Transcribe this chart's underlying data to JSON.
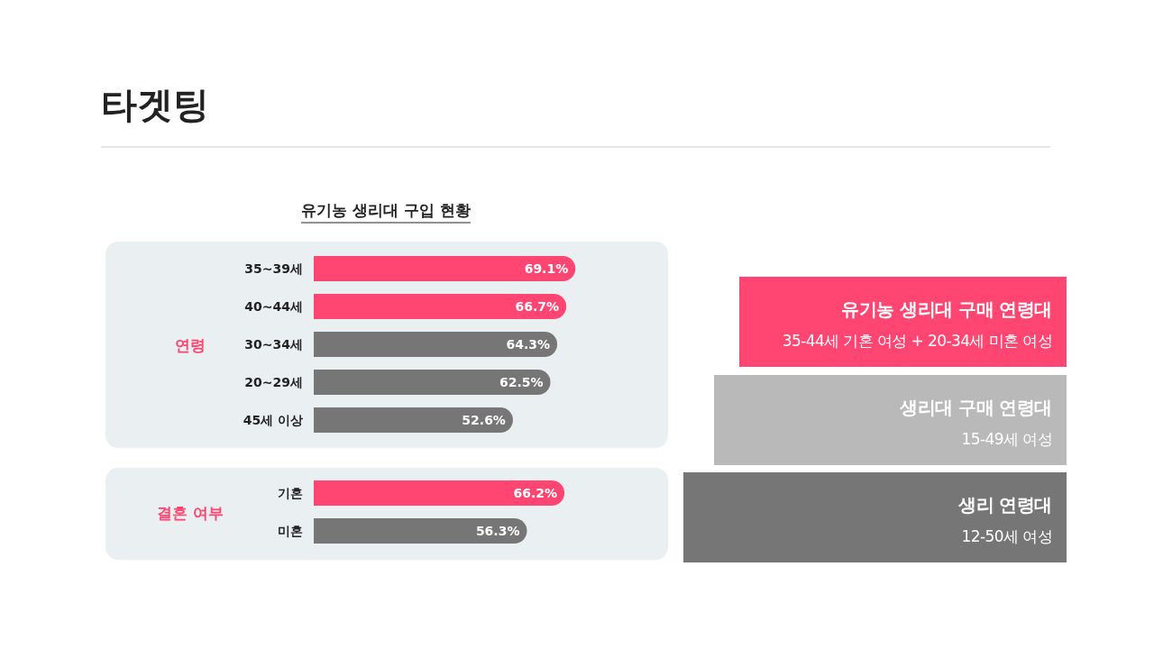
{
  "chart_data": [
    {
      "type": "bar",
      "orientation": "horizontal",
      "title": "타겟팅",
      "subtitle": "유기농 생리대 구입 현황",
      "ylabel": "연령",
      "categories": [
        "35~39세",
        "40~44세",
        "30~34세",
        "20~29세",
        "45세 이상"
      ],
      "values": [
        69.1,
        66.7,
        64.3,
        62.5,
        52.6
      ],
      "value_labels": [
        "69.1%",
        "66.7%",
        "64.3%",
        "62.5%",
        "52.6%"
      ],
      "colors": [
        "#ff4571",
        "#ff4571",
        "#767676",
        "#767676",
        "#767676"
      ]
    },
    {
      "type": "bar",
      "orientation": "horizontal",
      "ylabel": "결혼 여부",
      "categories": [
        "기혼",
        "미혼"
      ],
      "values": [
        66.2,
        56.3
      ],
      "value_labels": [
        "66.2%",
        "56.3%"
      ],
      "colors": [
        "#ff4571",
        "#767676"
      ]
    },
    {
      "type": "other",
      "annotations": [
        "유기농 생리대 구매 연령대",
        "35-44세 기혼 여성 + 20-34세 미혼 여성",
        "생리대 구매 연령대",
        "15-49세 여성",
        "생리 연령대",
        "12-50세 여성"
      ],
      "colors": [
        "#ff4571",
        "#b9b9b9",
        "#767676"
      ]
    }
  ]
}
